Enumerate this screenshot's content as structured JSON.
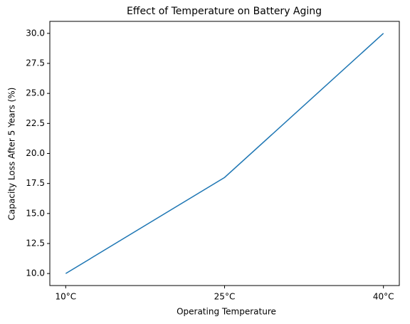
{
  "chart_data": {
    "type": "line",
    "title": "Effect of Temperature on Battery Aging",
    "x_label": "Operating Temperature",
    "y_label": "Capacity Loss After 5 Years (%)",
    "categories": [
      "10°C",
      "25°C",
      "40°C"
    ],
    "values": [
      10,
      18,
      30
    ],
    "color": "#1f77b4",
    "ylim": [
      9,
      31
    ],
    "yticks": [
      {
        "value": 10,
        "label": "10.0"
      },
      12.5,
      {
        "value": 15,
        "label": "15.0"
      },
      17.5,
      {
        "value": 20,
        "label": "20.0"
      },
      22.5,
      {
        "value": 25,
        "label": "25.0"
      },
      27.5,
      {
        "value": 30,
        "label": "30.0"
      }
    ],
    "grid": false
  }
}
